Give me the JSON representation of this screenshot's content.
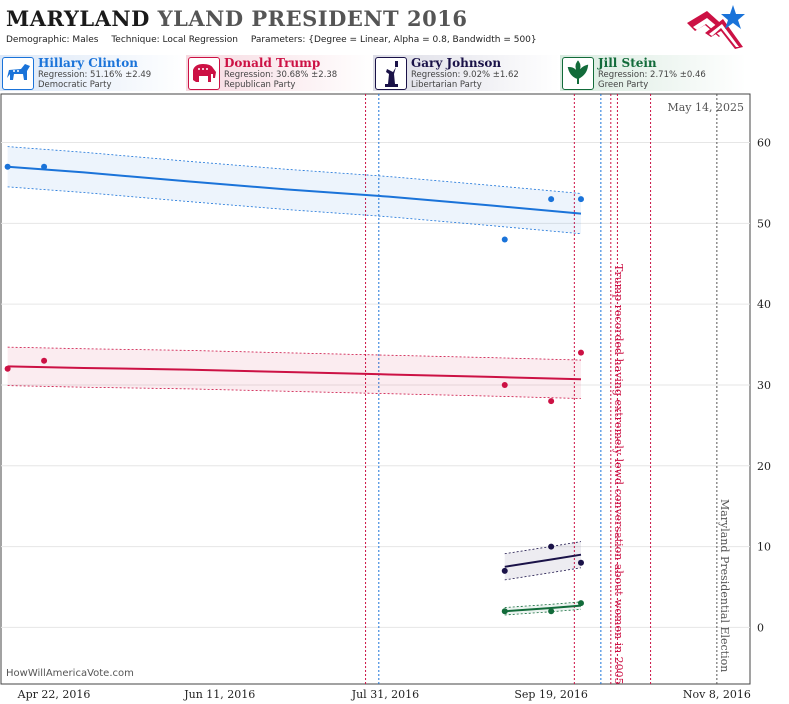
{
  "header": {
    "title_state": "MARYLAND",
    "title_rest": "YLAND PRESIDENT 2016",
    "demographic": "Demographic: Males",
    "technique": "Technique: Local Regression",
    "parameters": "Parameters: {Degree = Linear, Alpha = 0.8, Bandwidth = 500}"
  },
  "legend": [
    {
      "name": "Hillary Clinton",
      "regression": "Regression: 51.16% ±2.49",
      "party": "Democratic Party",
      "color": "#1a73d9",
      "bg": "#dbe7f7",
      "icon": "donkey-icon"
    },
    {
      "name": "Donald Trump",
      "regression": "Regression: 30.68% ±2.38",
      "party": "Republican Party",
      "color": "#cc1144",
      "bg": "#f6d9e0",
      "icon": "elephant-icon"
    },
    {
      "name": "Gary Johnson",
      "regression": "Regression: 9.02% ±1.62",
      "party": "Libertarian Party",
      "color": "#1a1248",
      "bg": "#dcdce6",
      "icon": "liberty-statue-icon"
    },
    {
      "name": "Jill Stein",
      "regression": "Regression: 2.71% ±0.46",
      "party": "Green Party",
      "color": "#126b3a",
      "bg": "#d8eadf",
      "icon": "leaf-icon"
    }
  ],
  "date_stamp": "May 14, 2025",
  "credit": "HowWillAmericaVote.com",
  "chart_data": {
    "type": "line",
    "x_axis": {
      "type": "date",
      "range": [
        "2016-04-06",
        "2016-11-18"
      ],
      "tick_labels": [
        "Apr 22, 2016",
        "Jun 11, 2016",
        "Jul 31, 2016",
        "Sep 19, 2016",
        "Nov 8, 2016"
      ],
      "tick_dates": [
        "2016-04-22",
        "2016-06-11",
        "2016-07-31",
        "2016-09-19",
        "2016-11-08"
      ]
    },
    "y_axis": {
      "range": [
        -7,
        66
      ],
      "ticks": [
        0,
        10,
        20,
        30,
        40,
        50,
        60
      ],
      "position": "right"
    },
    "grid": "horizontal",
    "series": [
      {
        "name": "Hillary Clinton",
        "color": "#1a73d9",
        "points": [
          [
            "2016-04-08",
            57
          ],
          [
            "2016-04-19",
            57
          ],
          [
            "2016-09-05",
            48
          ],
          [
            "2016-09-19",
            53
          ],
          [
            "2016-09-28",
            53
          ]
        ],
        "fit": [
          [
            "2016-04-08",
            57.0
          ],
          [
            "2016-05-01",
            56.3
          ],
          [
            "2016-06-01",
            55.2
          ],
          [
            "2016-07-01",
            54.2
          ],
          [
            "2016-08-01",
            53.3
          ],
          [
            "2016-09-01",
            52.2
          ],
          [
            "2016-09-28",
            51.2
          ]
        ],
        "band": 2.49
      },
      {
        "name": "Donald Trump",
        "color": "#cc1144",
        "points": [
          [
            "2016-04-08",
            32
          ],
          [
            "2016-04-19",
            33
          ],
          [
            "2016-09-05",
            30
          ],
          [
            "2016-09-19",
            28
          ],
          [
            "2016-09-28",
            34
          ]
        ],
        "fit": [
          [
            "2016-04-08",
            32.3
          ],
          [
            "2016-05-01",
            32.1
          ],
          [
            "2016-06-01",
            31.9
          ],
          [
            "2016-07-01",
            31.6
          ],
          [
            "2016-08-01",
            31.3
          ],
          [
            "2016-09-01",
            31.0
          ],
          [
            "2016-09-28",
            30.7
          ]
        ],
        "band": 2.38
      },
      {
        "name": "Gary Johnson",
        "color": "#1a1248",
        "points": [
          [
            "2016-09-05",
            7
          ],
          [
            "2016-09-19",
            10
          ],
          [
            "2016-09-28",
            8
          ]
        ],
        "fit": [
          [
            "2016-09-05",
            7.5
          ],
          [
            "2016-09-19",
            8.4
          ],
          [
            "2016-09-28",
            9.0
          ]
        ],
        "band": 1.62
      },
      {
        "name": "Jill Stein",
        "color": "#126b3a",
        "points": [
          [
            "2016-09-05",
            2
          ],
          [
            "2016-09-19",
            2
          ],
          [
            "2016-09-28",
            3
          ]
        ],
        "fit": [
          [
            "2016-09-05",
            2.0
          ],
          [
            "2016-09-19",
            2.4
          ],
          [
            "2016-09-28",
            2.7
          ]
        ],
        "band": 0.46
      }
    ],
    "events": [
      {
        "date": "2016-07-25",
        "color": "#cc1144"
      },
      {
        "date": "2016-07-29",
        "color": "#1a73d9"
      },
      {
        "date": "2016-09-26",
        "color": "#cc1144"
      },
      {
        "date": "2016-10-04",
        "color": "#1a73d9"
      },
      {
        "date": "2016-10-07",
        "color": "#cc1144",
        "label": "Trump recorded having extremely lewd conversation about women in 2005"
      },
      {
        "date": "2016-10-09",
        "color": "#cc1144"
      },
      {
        "date": "2016-10-19",
        "color": "#cc1144"
      },
      {
        "date": "2016-11-08",
        "color": "#555555",
        "label": "Maryland Presidential Election"
      }
    ]
  }
}
